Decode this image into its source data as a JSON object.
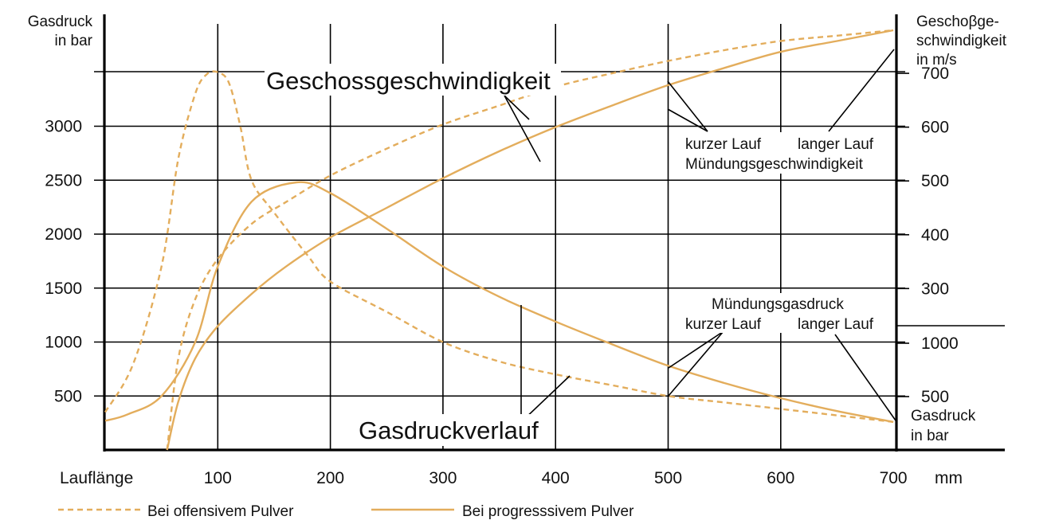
{
  "chart_data": {
    "type": "line",
    "x_axis": {
      "label": "Lauflänge",
      "unit": "mm",
      "ticks": [
        100,
        200,
        300,
        400,
        500,
        600,
        700
      ],
      "range": [
        0,
        800
      ]
    },
    "left_axis": {
      "label_lines": [
        "Gasdruck",
        "in bar"
      ],
      "ticks": [
        500,
        1000,
        1500,
        2000,
        2500,
        3000
      ],
      "range": [
        0,
        3500
      ]
    },
    "right_axis_velocity": {
      "label_lines": [
        "Geschoβge-",
        "schwindigkeit",
        "in m/s"
      ],
      "ticks": [
        300,
        400,
        500,
        600,
        700
      ],
      "range": [
        0,
        750
      ]
    },
    "right_axis_pressure": {
      "label_lines": [
        "Gasdruck",
        "in bar"
      ],
      "ticks": [
        500,
        1000
      ]
    },
    "grid": true,
    "legend": {
      "position": "bottom",
      "items": [
        {
          "label": "Bei offensivem Pulver",
          "style": "dashed"
        },
        {
          "label": "Bei progresssivem Pulver",
          "style": "solid"
        }
      ]
    },
    "series": [
      {
        "name": "Bei offensivem Pulver",
        "quantity": "Gasdruck",
        "axis": "left",
        "style": "dashed",
        "x": [
          0,
          25,
          50,
          65,
          80,
          90,
          100,
          110,
          120,
          130,
          150,
          180,
          200,
          250,
          300,
          350,
          400,
          450,
          500,
          550,
          600,
          650,
          700
        ],
        "y": [
          350,
          800,
          1700,
          2700,
          3300,
          3480,
          3500,
          3400,
          3000,
          2500,
          2200,
          1800,
          1560,
          1280,
          1000,
          820,
          700,
          600,
          500,
          440,
          380,
          320,
          260
        ]
      },
      {
        "name": "Bei progresssivem Pulver",
        "quantity": "Gasdruck",
        "axis": "left",
        "style": "solid",
        "x": [
          0,
          20,
          50,
          80,
          100,
          130,
          170,
          200,
          250,
          300,
          350,
          400,
          450,
          500,
          550,
          600,
          650,
          700
        ],
        "y": [
          270,
          330,
          500,
          1000,
          1700,
          2300,
          2480,
          2380,
          2050,
          1700,
          1420,
          1190,
          980,
          780,
          620,
          480,
          360,
          260
        ]
      },
      {
        "name": "Bei offensivem Pulver",
        "quantity": "Geschossgeschwindigkeit",
        "axis": "right",
        "style": "dashed",
        "x": [
          55,
          65,
          80,
          100,
          130,
          160,
          200,
          250,
          300,
          350,
          400,
          450,
          500,
          550,
          600,
          650,
          700
        ],
        "y": [
          0,
          170,
          280,
          355,
          420,
          460,
          510,
          560,
          605,
          640,
          675,
          700,
          723,
          743,
          760,
          770,
          780
        ]
      },
      {
        "name": "Bei progresssivem Pulver",
        "quantity": "Geschossgeschwindigkeit",
        "axis": "right",
        "style": "solid",
        "x": [
          55,
          65,
          80,
          100,
          130,
          160,
          200,
          250,
          300,
          350,
          400,
          450,
          500,
          550,
          600,
          650,
          700
        ],
        "y": [
          0,
          90,
          170,
          230,
          290,
          340,
          395,
          450,
          505,
          555,
          600,
          640,
          678,
          710,
          740,
          760,
          780
        ]
      }
    ],
    "annotations": [
      {
        "id": "velocity_title",
        "text": "Geschossgeschwindigkeit"
      },
      {
        "id": "pressure_title",
        "text": "Gasdruckverlauf"
      },
      {
        "id": "vel_short",
        "text": "kurzer Lauf"
      },
      {
        "id": "vel_long",
        "text": "langer Lauf"
      },
      {
        "id": "vel_muzzle",
        "text": "Mündungsgeschwindigkeit"
      },
      {
        "id": "gas_muzzle",
        "text": "Mündungsgasdruck"
      },
      {
        "id": "gas_short",
        "text": "kurzer Lauf"
      },
      {
        "id": "gas_long",
        "text": "langer Lauf"
      }
    ],
    "colors": {
      "curve": "#e3ad5c",
      "axis": "#000000"
    }
  }
}
